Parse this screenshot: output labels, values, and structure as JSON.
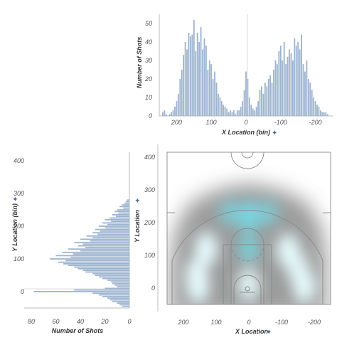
{
  "colors": {
    "bar": "#9db4cf",
    "bar_stroke": "#8aa3c2",
    "axis": "#bbbbbb",
    "court": "#888888",
    "heat": "#6fe3f0"
  },
  "chart_data": [
    {
      "id": "top",
      "type": "bar",
      "title": "",
      "xlabel": "X Location (bin)",
      "ylabel": "Number of Shots",
      "xlim": [
        250,
        -250
      ],
      "ylim": [
        0,
        55
      ],
      "xticks": [
        200,
        100,
        0,
        -100,
        -200
      ],
      "yticks": [
        0,
        10,
        20,
        30,
        40,
        50
      ],
      "x": [
        240,
        235,
        230,
        220,
        215,
        210,
        205,
        200,
        195,
        190,
        185,
        180,
        175,
        170,
        165,
        160,
        155,
        150,
        145,
        140,
        135,
        130,
        125,
        120,
        115,
        110,
        105,
        100,
        95,
        90,
        85,
        80,
        75,
        70,
        65,
        60,
        55,
        50,
        45,
        40,
        35,
        30,
        25,
        20,
        15,
        10,
        5,
        0,
        -5,
        -10,
        -15,
        -20,
        -25,
        -30,
        -35,
        -40,
        -45,
        -50,
        -55,
        -60,
        -65,
        -70,
        -75,
        -80,
        -85,
        -90,
        -95,
        -100,
        -105,
        -110,
        -115,
        -120,
        -125,
        -130,
        -135,
        -140,
        -145,
        -150,
        -155,
        -160,
        -165,
        -170,
        -175,
        -180,
        -185,
        -190,
        -195,
        -200,
        -205,
        -210,
        -215,
        -220,
        -225,
        -230,
        -235
      ],
      "values": [
        2,
        3,
        1,
        1,
        2,
        3,
        5,
        8,
        12,
        20,
        25,
        33,
        40,
        36,
        45,
        43,
        44,
        52,
        35,
        45,
        40,
        48,
        36,
        42,
        38,
        25,
        30,
        28,
        20,
        24,
        18,
        12,
        10,
        8,
        6,
        5,
        4,
        2,
        3,
        2,
        3,
        1,
        3,
        3,
        5,
        8,
        14,
        24,
        20,
        10,
        6,
        4,
        3,
        5,
        8,
        14,
        16,
        12,
        18,
        16,
        20,
        22,
        18,
        25,
        30,
        28,
        35,
        38,
        30,
        40,
        28,
        32,
        36,
        34,
        30,
        42,
        38,
        40,
        36,
        44,
        28,
        24,
        30,
        20,
        18,
        14,
        10,
        8,
        6,
        5,
        3,
        2,
        2,
        2,
        1
      ]
    },
    {
      "id": "left",
      "type": "bar",
      "orientation": "horizontal",
      "title": "",
      "xlabel": "Number of Shots",
      "ylabel": "Y Location (bin)",
      "xlim": [
        80,
        0
      ],
      "ylim": [
        -50,
        450
      ],
      "xticks": [
        80,
        60,
        40,
        20,
        0
      ],
      "yticks": [
        0,
        100,
        200,
        300,
        400
      ],
      "y": [
        280,
        275,
        270,
        265,
        260,
        255,
        250,
        245,
        240,
        235,
        230,
        225,
        220,
        215,
        210,
        205,
        200,
        195,
        190,
        185,
        180,
        175,
        170,
        165,
        160,
        155,
        150,
        145,
        140,
        135,
        130,
        125,
        120,
        115,
        110,
        105,
        100,
        95,
        90,
        85,
        80,
        75,
        70,
        65,
        60,
        55,
        50,
        45,
        40,
        35,
        30,
        25,
        20,
        15,
        10,
        5,
        0,
        -5,
        -10,
        -15,
        -20,
        -25,
        -30,
        -35,
        -40,
        -45
      ],
      "values": [
        2,
        3,
        4,
        6,
        8,
        5,
        10,
        12,
        9,
        14,
        11,
        16,
        20,
        15,
        22,
        18,
        25,
        20,
        28,
        24,
        30,
        26,
        35,
        30,
        40,
        32,
        45,
        38,
        42,
        36,
        50,
        40,
        55,
        46,
        60,
        48,
        65,
        52,
        58,
        54,
        50,
        45,
        42,
        38,
        36,
        30,
        28,
        25,
        22,
        18,
        15,
        14,
        12,
        10,
        20,
        45,
        78,
        30,
        25,
        22,
        18,
        16,
        14,
        10,
        8,
        6
      ]
    },
    {
      "id": "court",
      "type": "heatmap",
      "title": "",
      "xlabel": "X Location",
      "ylabel": "Y Location",
      "xlim": [
        250,
        -250
      ],
      "ylim": [
        -50,
        450
      ],
      "xticks": [
        200,
        100,
        0,
        -100,
        -200
      ],
      "yticks": [
        0,
        100,
        200,
        300,
        400
      ],
      "hotspots": [
        {
          "x": 130,
          "y": 120,
          "intensity": 1.0
        },
        {
          "x": 160,
          "y": 40,
          "intensity": 0.95
        },
        {
          "x": 155,
          "y": 5,
          "intensity": 1.0
        },
        {
          "x": -120,
          "y": 115,
          "intensity": 1.0
        },
        {
          "x": -150,
          "y": 60,
          "intensity": 0.85
        },
        {
          "x": -170,
          "y": 5,
          "intensity": 1.0
        },
        {
          "x": 0,
          "y": 220,
          "intensity": 0.75
        },
        {
          "x": 0,
          "y": 120,
          "intensity": 0.5
        },
        {
          "x": 0,
          "y": 10,
          "intensity": 0.9
        },
        {
          "x": 60,
          "y": 230,
          "intensity": 0.3
        },
        {
          "x": -60,
          "y": 230,
          "intensity": 0.3
        }
      ],
      "shot_range": [
        {
          "x": 240,
          "y": -40
        },
        {
          "x": 240,
          "y": 80
        },
        {
          "x": 225,
          "y": 180
        },
        {
          "x": 180,
          "y": 260
        },
        {
          "x": 100,
          "y": 300
        },
        {
          "x": 0,
          "y": 320
        },
        {
          "x": -100,
          "y": 300
        },
        {
          "x": -180,
          "y": 260
        },
        {
          "x": -225,
          "y": 180
        },
        {
          "x": -240,
          "y": 80
        },
        {
          "x": -240,
          "y": -40
        }
      ]
    }
  ]
}
